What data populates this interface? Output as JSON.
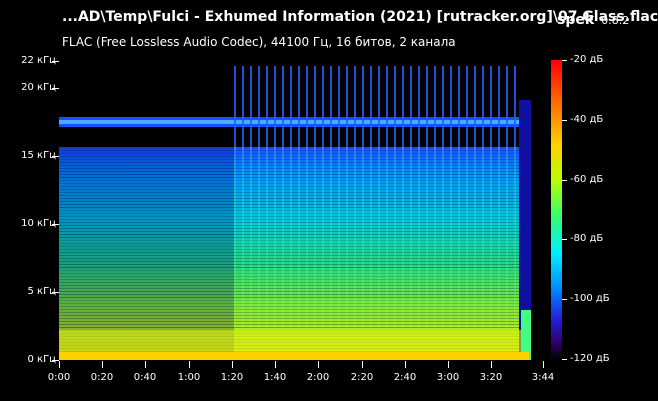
{
  "window": {
    "title": "...AD\\Temp\\Fulci - Exhumed Information (2021) [rutracker.org]\\07 Glass.flac",
    "app_name": "spek",
    "app_version": "0.8.2",
    "subtitle": "FLAC (Free Lossless Audio Codec), 44100 Гц, 16 битов, 2 канала"
  },
  "y_axis": {
    "ticks": [
      {
        "label": "22 кГц",
        "khz": 22
      },
      {
        "label": "20 кГц",
        "khz": 20
      },
      {
        "label": "15 кГц",
        "khz": 15
      },
      {
        "label": "10 кГц",
        "khz": 10
      },
      {
        "label": "5 кГц",
        "khz": 5
      },
      {
        "label": "0 кГц",
        "khz": 0
      }
    ],
    "max_khz": 22.05
  },
  "x_axis": {
    "ticks": [
      {
        "label": "0:00",
        "seconds": 0
      },
      {
        "label": "0:20",
        "seconds": 20
      },
      {
        "label": "0:40",
        "seconds": 40
      },
      {
        "label": "1:00",
        "seconds": 60
      },
      {
        "label": "1:20",
        "seconds": 80
      },
      {
        "label": "1:40",
        "seconds": 100
      },
      {
        "label": "2:00",
        "seconds": 120
      },
      {
        "label": "2:20",
        "seconds": 140
      },
      {
        "label": "2:40",
        "seconds": 160
      },
      {
        "label": "3:00",
        "seconds": 180
      },
      {
        "label": "3:20",
        "seconds": 200
      },
      {
        "label": "3:44",
        "seconds": 224
      }
    ],
    "max_seconds": 224
  },
  "colorbar": {
    "ticks": [
      {
        "label": "-20 дБ",
        "db": -20
      },
      {
        "label": "-40 дБ",
        "db": -40
      },
      {
        "label": "-60 дБ",
        "db": -60
      },
      {
        "label": "-80 дБ",
        "db": -80
      },
      {
        "label": "-100 дБ",
        "db": -100
      },
      {
        "label": "-120 дБ",
        "db": -120
      }
    ],
    "min_db": -120,
    "max_db": -20
  }
}
